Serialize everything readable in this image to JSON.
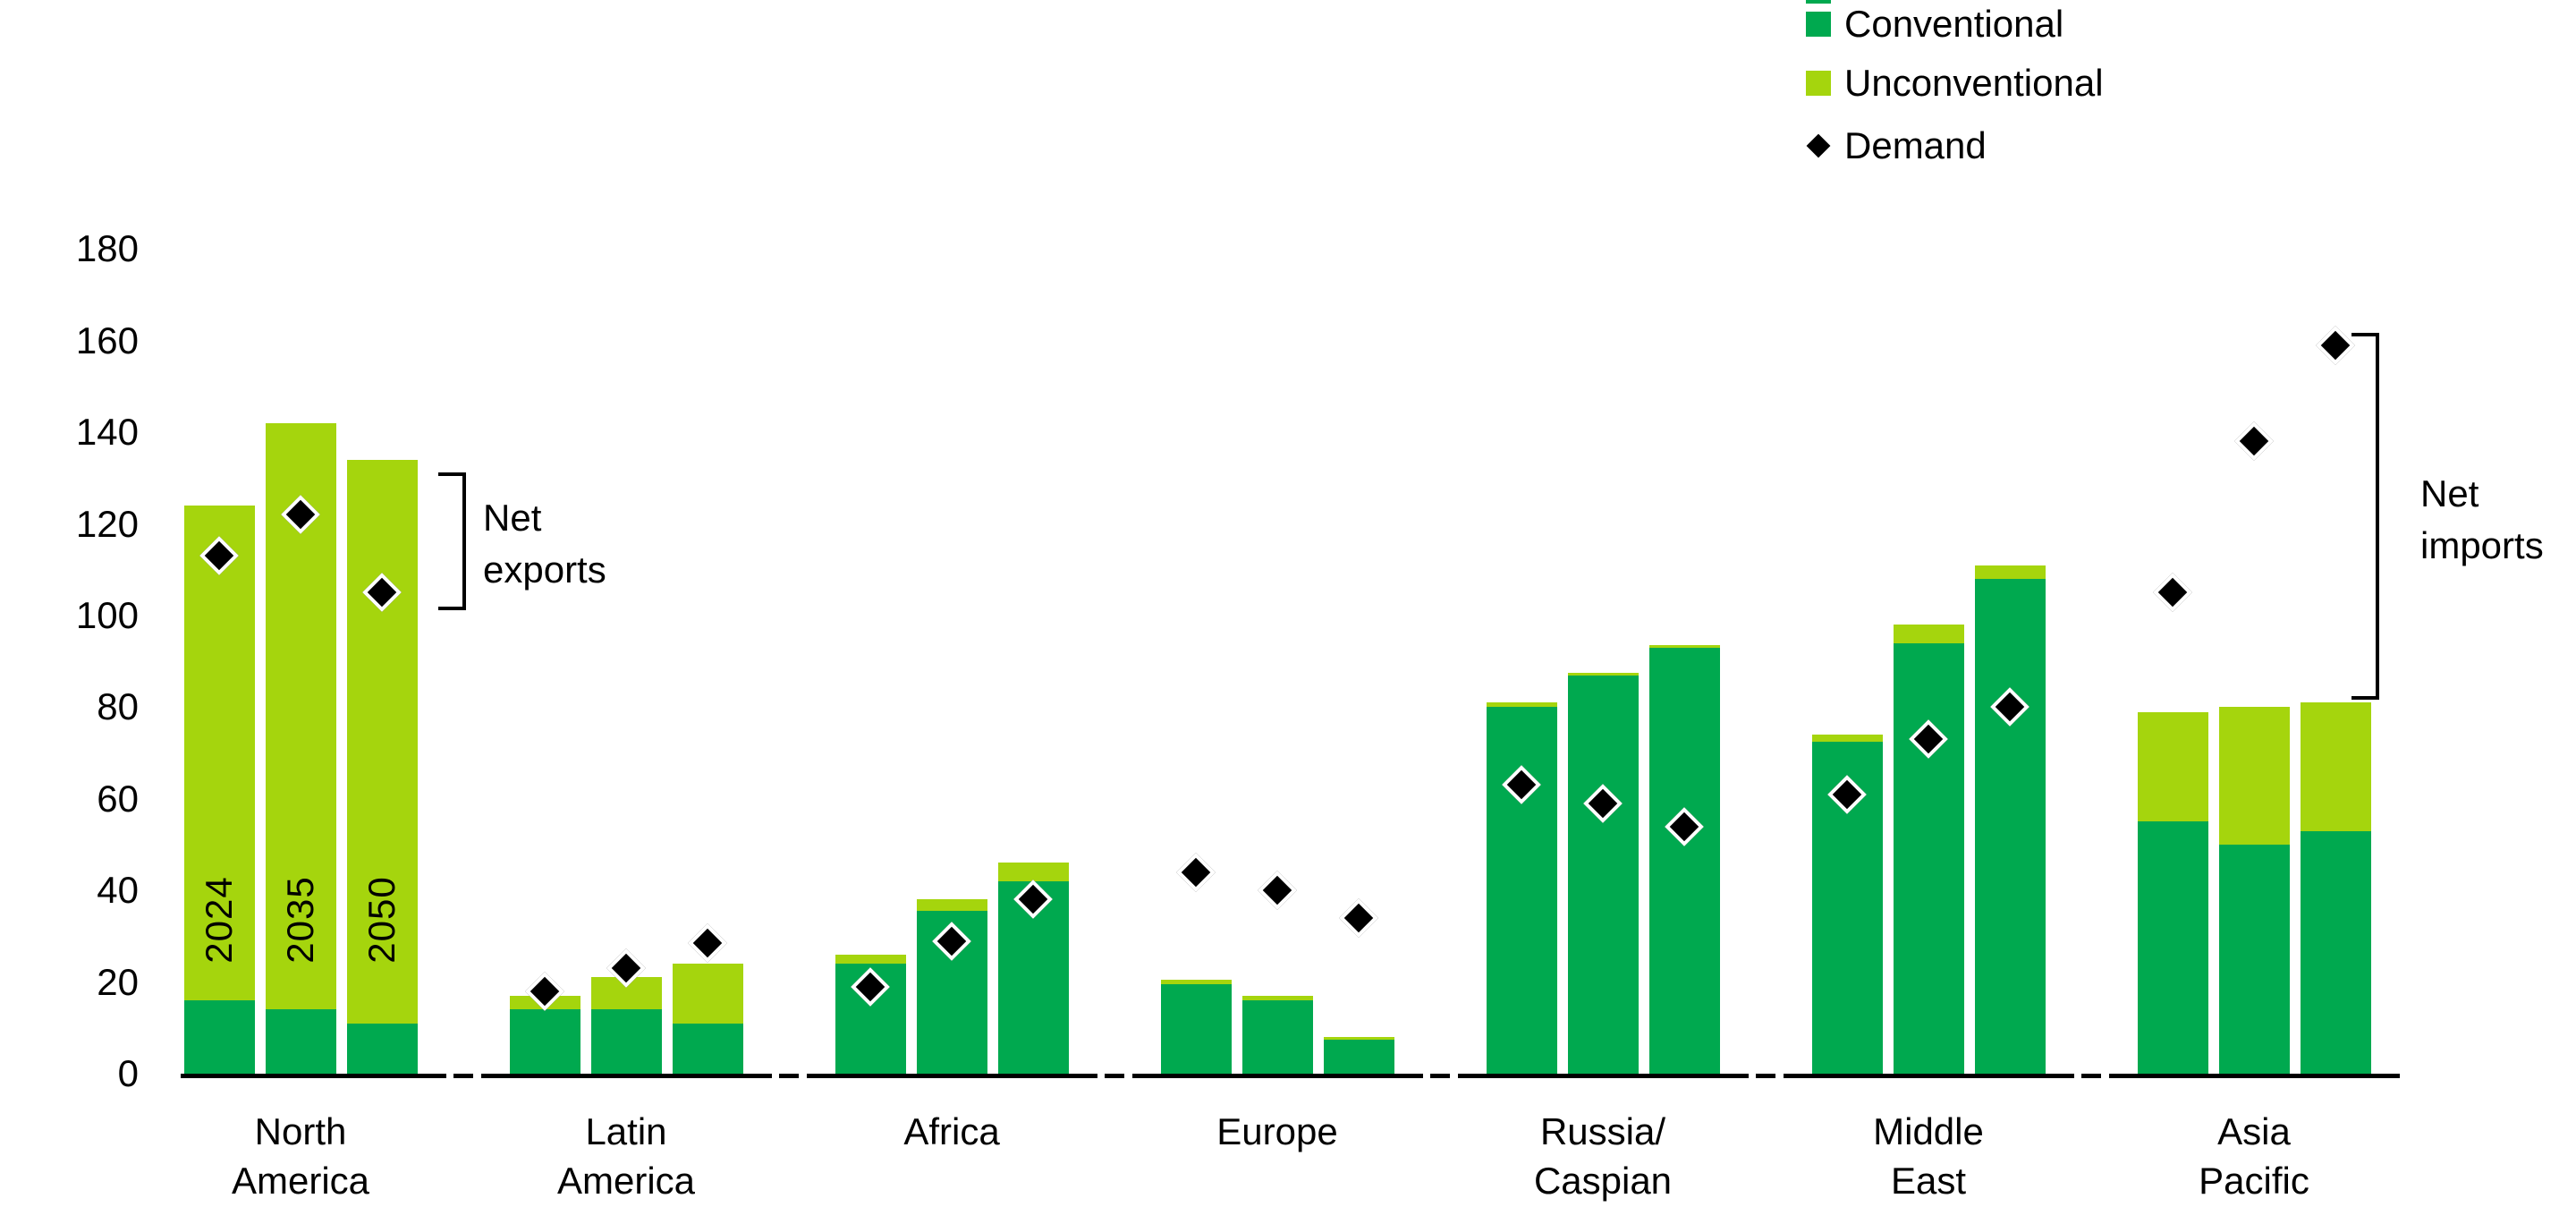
{
  "chart_data": {
    "type": "bar",
    "subtype": "stacked-columns-with-demand-markers",
    "title": "",
    "xlabel": "",
    "ylabel": "",
    "ylim": [
      0,
      180
    ],
    "yticks": [
      0,
      20,
      40,
      60,
      80,
      100,
      120,
      140,
      160,
      180
    ],
    "grid": false,
    "legend_position": "top-right",
    "bar_year_labels": [
      "2024",
      "2035",
      "2050"
    ],
    "categories": [
      {
        "label_lines": [
          "North",
          "America"
        ]
      },
      {
        "label_lines": [
          "Latin",
          "America"
        ]
      },
      {
        "label_lines": [
          "Africa"
        ]
      },
      {
        "label_lines": [
          "Europe"
        ]
      },
      {
        "label_lines": [
          "Russia/",
          "Caspian"
        ]
      },
      {
        "label_lines": [
          "Middle",
          "East"
        ]
      },
      {
        "label_lines": [
          "Asia",
          "Pacific"
        ]
      }
    ],
    "series": [
      {
        "name": "Conventional",
        "type": "bar-stack",
        "color": "#00A94F",
        "values": [
          [
            16,
            14,
            11
          ],
          [
            14,
            14,
            11
          ],
          [
            24,
            35.5,
            42
          ],
          [
            19.5,
            16,
            7.5
          ],
          [
            80,
            87,
            93
          ],
          [
            72.5,
            94,
            108
          ],
          [
            55,
            50,
            53
          ]
        ]
      },
      {
        "name": "Unconventional",
        "type": "bar-stack",
        "color": "#A5D50D",
        "values": [
          [
            108,
            128,
            123
          ],
          [
            3,
            7,
            13
          ],
          [
            2,
            2.5,
            4
          ],
          [
            1,
            1,
            0.5
          ],
          [
            1,
            0.5,
            0.5
          ],
          [
            1.5,
            4,
            3
          ],
          [
            24,
            30,
            28
          ]
        ]
      },
      {
        "name": "Demand",
        "type": "scatter-diamond",
        "color": "#000000",
        "values": [
          [
            113,
            122,
            105
          ],
          [
            18,
            23,
            28.5
          ],
          [
            19,
            29,
            38
          ],
          [
            44,
            40,
            34
          ],
          [
            63,
            59,
            54
          ],
          [
            61,
            73,
            80
          ],
          [
            105,
            138,
            159
          ]
        ]
      }
    ],
    "annotations": [
      {
        "text_lines": [
          "Net",
          "exports"
        ],
        "group_index": 0,
        "bracket_top_value": 131.3,
        "bracket_bottom_value": 101.2
      },
      {
        "text_lines": [
          "Net",
          "imports"
        ],
        "group_index": 6,
        "bracket_top_value": 161.7,
        "bracket_bottom_value": 81.6
      }
    ],
    "legend": {
      "items": [
        {
          "label": "Conventional",
          "marker": "square",
          "color": "#00A94F"
        },
        {
          "label": "Unconventional",
          "marker": "square",
          "color": "#A5D50D"
        },
        {
          "label": "Demand",
          "marker": "diamond",
          "color": "#000000"
        }
      ]
    }
  }
}
